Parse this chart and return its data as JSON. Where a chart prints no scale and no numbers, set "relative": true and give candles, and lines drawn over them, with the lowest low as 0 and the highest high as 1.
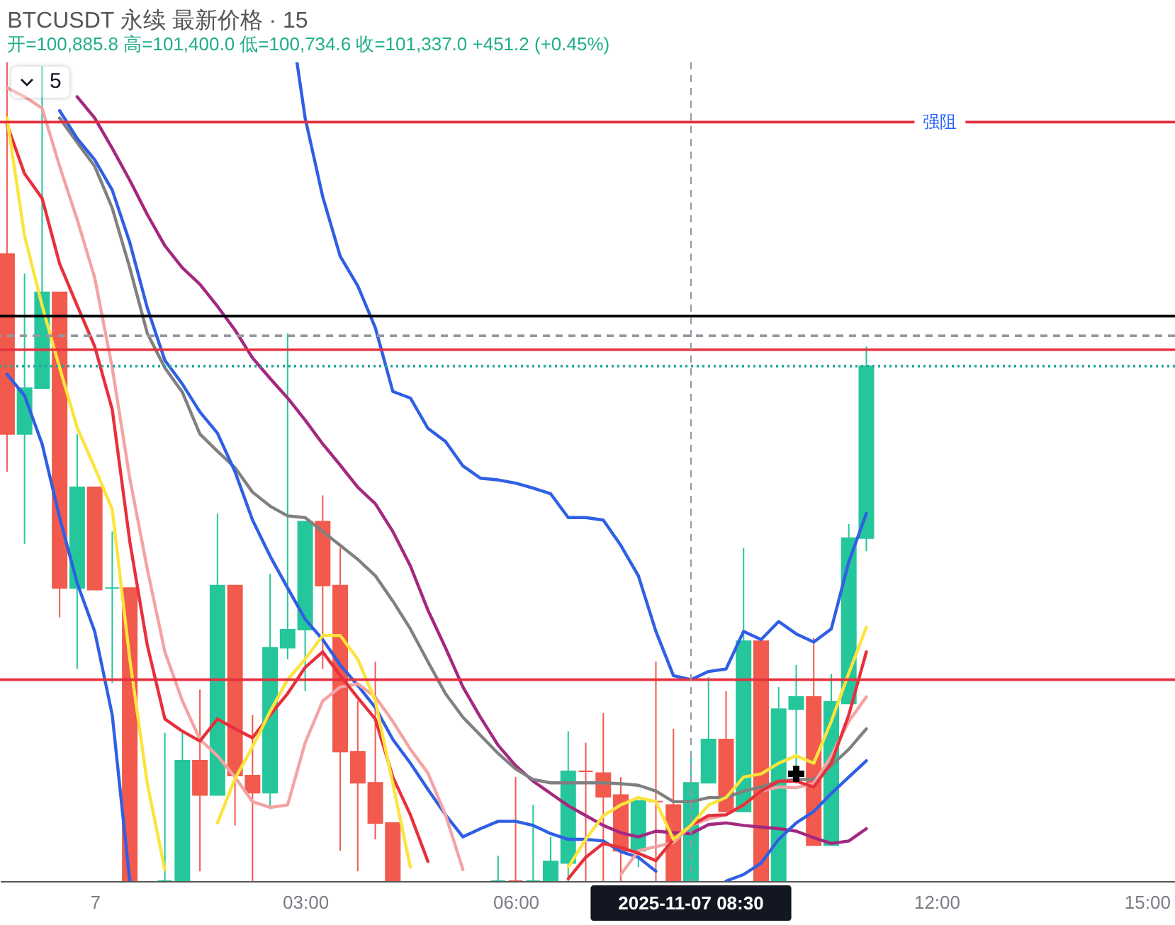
{
  "chart_data": {
    "type": "candlestick",
    "relative": true,
    "title": "BTCUSDT 永续 最新价格 · 15",
    "subtitle": "开=100,885.8 高=101,400.0 低=100,734.6 收=101,337.0 +451.2 (+0.45%)",
    "annotations": [
      "5"
    ],
    "x": [
      "2025-11-06T22:45",
      "2025-11-06T23:00",
      "2025-11-06T23:15",
      "2025-11-06T23:30",
      "2025-11-06T23:45",
      "2025-11-07T00:00",
      "2025-11-07T00:15",
      "2025-11-07T00:30",
      "2025-11-07T00:45",
      "2025-11-07T01:00",
      "2025-11-07T01:15",
      "2025-11-07T01:30",
      "2025-11-07T01:45",
      "2025-11-07T02:00",
      "2025-11-07T02:15",
      "2025-11-07T02:30",
      "2025-11-07T02:45",
      "2025-11-07T03:00",
      "2025-11-07T03:15",
      "2025-11-07T03:30",
      "2025-11-07T03:45",
      "2025-11-07T04:00",
      "2025-11-07T04:15",
      "2025-11-07T04:30",
      "2025-11-07T04:45",
      "2025-11-07T05:00",
      "2025-11-07T05:15",
      "2025-11-07T05:30",
      "2025-11-07T05:45",
      "2025-11-07T06:00",
      "2025-11-07T06:15",
      "2025-11-07T06:30",
      "2025-11-07T06:45",
      "2025-11-07T07:00",
      "2025-11-07T07:15",
      "2025-11-07T07:30",
      "2025-11-07T07:45",
      "2025-11-07T08:00",
      "2025-11-07T08:15",
      "2025-11-07T08:30",
      "2025-11-07T08:45",
      "2025-11-07T09:00",
      "2025-11-07T09:15",
      "2025-11-07T09:30",
      "2025-11-07T09:45",
      "2025-11-07T10:00",
      "2025-11-07T10:15",
      "2025-11-07T10:30",
      "2025-11-07T10:45",
      "2025-11-07T11:00"
    ],
    "xlim": [
      "2025-11-06T22:39",
      "2025-11-07T15:24"
    ],
    "xticks": [
      {
        "value": "2025-11-07T00:00",
        "label": "7"
      },
      {
        "value": "2025-11-07T03:00",
        "label": "03:00"
      },
      {
        "value": "2025-11-07T06:00",
        "label": "06:00"
      },
      {
        "value": "2025-11-07T12:00",
        "label": "12:00"
      },
      {
        "value": "2025-11-07T15:00",
        "label": "15:00"
      }
    ],
    "ohlc": [
      [
        0.766,
        1.0,
        0.5,
        0.546
      ],
      [
        0.546,
        0.742,
        0.412,
        0.602
      ],
      [
        0.602,
        0.995,
        0.602,
        0.719
      ],
      [
        0.719,
        0.719,
        0.322,
        0.358
      ],
      [
        0.358,
        0.546,
        0.259,
        0.481
      ],
      [
        0.481,
        0.481,
        0.356,
        0.356
      ],
      [
        0.358,
        0.427,
        0.242,
        0.358
      ],
      [
        0.358,
        0.358,
        0,
        0
      ],
      null,
      [
        0,
        0.181,
        0,
        0
      ],
      [
        0,
        0.181,
        0,
        0.147
      ],
      [
        0.147,
        0.234,
        0.012,
        0.105
      ],
      [
        0.105,
        0.449,
        0.105,
        0.361
      ],
      [
        0.361,
        0.361,
        0.068,
        0.129
      ],
      [
        0.129,
        0.203,
        0,
        0.108
      ],
      [
        0.108,
        0.375,
        0.088,
        0.285
      ],
      [
        0.285,
        0.669,
        0.271,
        0.307
      ],
      [
        0.307,
        0.439,
        0.232,
        0.439
      ],
      [
        0.439,
        0.471,
        0.259,
        0.361
      ],
      [
        0.361,
        0.407,
        0.037,
        0.158
      ],
      [
        0.158,
        0.22,
        0.012,
        0.12
      ],
      [
        0.12,
        0.268,
        0.051,
        0.071
      ],
      [
        0.071,
        0.071,
        0,
        0
      ],
      null,
      null,
      null,
      null,
      null,
      [
        0,
        0.031,
        0,
        0
      ],
      [
        0,
        0.127,
        0,
        0
      ],
      [
        0,
        0.093,
        0,
        0
      ],
      [
        0,
        0.054,
        0,
        0.024
      ],
      [
        0.022,
        0.183,
        0,
        0.134
      ],
      [
        0.134,
        0.169,
        0,
        0.134
      ],
      [
        0.132,
        0.205,
        0,
        0.103
      ],
      [
        0.105,
        0.127,
        0,
        0.037
      ],
      [
        0.037,
        0.098,
        0.017,
        0.098
      ],
      [
        0.097,
        0.268,
        0,
        0.097
      ],
      [
        0.093,
        0.186,
        0,
        0
      ],
      [
        0,
        0.156,
        0,
        0.12
      ],
      [
        0.12,
        0.249,
        0.12,
        0.173
      ],
      [
        0.173,
        0.232,
        0.085,
        0.085
      ],
      [
        0.085,
        0.407,
        0.085,
        0.293
      ],
      [
        0.293,
        0.293,
        0,
        0
      ],
      [
        0,
        0.237,
        0,
        0.21
      ],
      [
        0.21,
        0.264,
        0.119,
        0.225
      ],
      [
        0.225,
        0.297,
        0.044,
        0.044
      ],
      [
        0.044,
        0.253,
        0.044,
        0.219
      ],
      [
        0.217,
        0.436,
        0.217,
        0.419
      ],
      [
        0.419,
        0.653,
        0.403,
        0.629
      ]
    ],
    "colors": [
      "#f15a4c",
      "#26c69c",
      "#26c69c",
      "#f15a4c",
      "#26c69c",
      "#f15a4c",
      "#26c69c",
      "#f15a4c",
      null,
      "#26c69c",
      "#26c69c",
      "#f15a4c",
      "#26c69c",
      "#f15a4c",
      "#f15a4c",
      "#26c69c",
      "#26c69c",
      "#26c69c",
      "#f15a4c",
      "#f15a4c",
      "#f15a4c",
      "#f15a4c",
      "#f15a4c",
      null,
      null,
      null,
      null,
      null,
      "#26c69c",
      "#f15a4c",
      "#26c69c",
      "#26c69c",
      "#26c69c",
      "#f15a4c",
      "#f15a4c",
      "#f15a4c",
      "#26c69c",
      "#f15a4c",
      "#f15a4c",
      "#26c69c",
      "#26c69c",
      "#f15a4c",
      "#26c69c",
      "#f15a4c",
      "#26c69c",
      "#26c69c",
      "#f15a4c",
      "#26c69c",
      "#26c69c",
      "#26c69c"
    ],
    "series": [
      {
        "type": "line",
        "color": "#2f5fe4",
        "x": [
          "2025-11-07T02:53",
          "2025-11-07T03:00",
          "2025-11-07T03:15",
          "2025-11-07T03:30",
          "2025-11-07T03:45",
          "2025-11-07T04:00",
          "2025-11-07T04:15",
          "2025-11-07T04:30",
          "2025-11-07T04:45",
          "2025-11-07T05:00",
          "2025-11-07T05:15",
          "2025-11-07T05:30",
          "2025-11-07T05:45",
          "2025-11-07T06:00",
          "2025-11-07T06:15",
          "2025-11-07T06:30",
          "2025-11-07T06:45",
          "2025-11-07T07:00",
          "2025-11-07T07:15",
          "2025-11-07T07:30",
          "2025-11-07T07:45",
          "2025-11-07T08:00",
          "2025-11-07T08:15",
          "2025-11-07T08:30",
          "2025-11-07T08:45",
          "2025-11-07T09:00",
          "2025-11-07T09:15",
          "2025-11-07T09:30",
          "2025-11-07T09:45",
          "2025-11-07T10:00",
          "2025-11-07T10:15",
          "2025-11-07T10:30",
          "2025-11-07T10:45",
          "2025-11-07T11:00"
        ],
        "values": [
          1.0,
          0.932,
          0.836,
          0.763,
          0.727,
          0.676,
          0.598,
          0.59,
          0.553,
          0.537,
          0.507,
          0.492,
          0.49,
          0.486,
          0.48,
          0.473,
          0.444,
          0.444,
          0.441,
          0.41,
          0.373,
          0.305,
          0.251,
          0.246,
          0.256,
          0.259,
          0.305,
          0.295,
          0.317,
          0.302,
          0.292,
          0.308,
          0.39,
          0.449
        ]
      },
      {
        "type": "line",
        "color": "#a4287f",
        "values": [
          null,
          null,
          null,
          null,
          0.958,
          0.932,
          0.895,
          0.856,
          0.814,
          0.776,
          0.749,
          0.729,
          0.702,
          0.673,
          0.639,
          0.614,
          0.59,
          0.563,
          0.534,
          0.508,
          0.481,
          0.461,
          0.427,
          0.385,
          0.331,
          0.285,
          0.237,
          0.2,
          0.166,
          0.141,
          0.122,
          0.107,
          0.092,
          0.08,
          0.068,
          0.059,
          0.054,
          0.061,
          0.059,
          0.058,
          0.069,
          0.071,
          0.068,
          0.066,
          0.064,
          0.061,
          0.053,
          0.046,
          0.049,
          0.064
        ]
      },
      {
        "type": "line",
        "color": "#808080",
        "values": [
          null,
          null,
          null,
          0.932,
          0.902,
          0.873,
          0.822,
          0.749,
          0.669,
          0.627,
          0.597,
          0.546,
          0.525,
          0.505,
          0.475,
          0.458,
          0.446,
          0.444,
          0.427,
          0.41,
          0.393,
          0.373,
          0.342,
          0.308,
          0.268,
          0.229,
          0.2,
          0.178,
          0.156,
          0.137,
          0.124,
          0.12,
          0.12,
          0.12,
          0.12,
          0.119,
          0.117,
          0.11,
          0.097,
          0.097,
          0.102,
          0.102,
          0.11,
          0.115,
          0.122,
          0.124,
          0.124,
          0.141,
          0.161,
          0.186
        ]
      },
      {
        "type": "line",
        "color": "#2f5fe4",
        "values": [
          null,
          null,
          null,
          0.941,
          0.907,
          0.881,
          0.844,
          0.78,
          0.7,
          0.636,
          0.607,
          0.573,
          0.547,
          0.5,
          0.441,
          0.397,
          0.358,
          0.32,
          0.295,
          0.264,
          0.239,
          0.212,
          0.173,
          0.144,
          0.112,
          0.081,
          0.054,
          0.064,
          0.073,
          0.073,
          0.068,
          0.058,
          0.051,
          0.051,
          0.049,
          0.036,
          0.029,
          0.012,
          null,
          null,
          null,
          0.0,
          0.008,
          0.022,
          0.051,
          0.071,
          0.085,
          0.107,
          0.127,
          0.147
        ]
      },
      {
        "type": "line",
        "color": "#2f5fe4",
        "values": [
          0.619,
          0.593,
          0.534,
          0.444,
          0.364,
          0.305,
          0.203,
          0.0,
          null,
          null,
          null,
          null,
          null,
          null,
          null,
          null,
          null,
          null,
          null,
          null,
          null,
          null,
          null,
          null,
          null,
          null,
          null,
          null,
          null,
          null,
          null,
          null,
          null,
          null,
          null,
          null,
          null,
          null,
          null,
          null,
          null,
          null,
          null,
          null,
          null,
          null,
          null,
          null,
          null,
          null
        ]
      },
      {
        "type": "line",
        "color": "#f4a3a3",
        "values": [
          0.969,
          0.958,
          0.944,
          0.873,
          0.808,
          0.737,
          0.627,
          0.492,
          0.381,
          0.28,
          0.22,
          0.173,
          0.153,
          0.127,
          0.097,
          0.09,
          0.093,
          0.169,
          0.22,
          0.237,
          0.241,
          0.225,
          0.195,
          0.161,
          0.132,
          0.081,
          0.014,
          null,
          null,
          null,
          null,
          null,
          null,
          null,
          null,
          0.008,
          0.037,
          0.042,
          0.047,
          0.068,
          0.076,
          0.081,
          0.093,
          0.11,
          0.115,
          0.114,
          0.119,
          0.153,
          0.195,
          0.225
        ]
      },
      {
        "type": "line",
        "color": "#e8303c",
        "values": [
          0.924,
          0.864,
          0.834,
          0.754,
          0.703,
          0.653,
          0.576,
          0.415,
          0.288,
          0.198,
          0.183,
          0.171,
          0.198,
          0.186,
          0.175,
          0.203,
          0.229,
          0.261,
          0.28,
          0.251,
          0.224,
          0.198,
          0.127,
          0.081,
          0.024,
          null,
          null,
          null,
          null,
          null,
          null,
          null,
          0.003,
          0.029,
          0.046,
          0.041,
          0.034,
          0.025,
          0.051,
          0.068,
          0.08,
          0.081,
          0.093,
          0.11,
          0.122,
          0.122,
          0.115,
          0.144,
          0.203,
          0.28
        ]
      },
      {
        "type": "line",
        "color": "#fbe43c",
        "values": [
          0.932,
          0.788,
          0.703,
          0.627,
          0.554,
          0.505,
          0.454,
          0.271,
          0.119,
          0.014,
          null,
          null,
          0.071,
          0.125,
          0.164,
          0.207,
          0.246,
          0.271,
          0.3,
          0.3,
          0.271,
          0.22,
          0.119,
          0.017,
          null,
          null,
          null,
          null,
          null,
          null,
          null,
          null,
          0.017,
          0.051,
          0.08,
          0.093,
          0.102,
          0.097,
          0.051,
          0.068,
          0.093,
          0.102,
          0.127,
          0.131,
          0.144,
          0.153,
          0.144,
          0.195,
          0.254,
          0.31
        ]
      },
      {
        "type": "scatter",
        "marker": "cross",
        "color": "#000000",
        "x": [
          "2025-11-07T10:00"
        ],
        "values": [
          0.131
        ]
      }
    ],
    "ref_lines": [
      {
        "axis": "y",
        "value": 0.927,
        "label": "强阻",
        "color": "#e5303e"
      },
      {
        "axis": "y",
        "value": 0.69,
        "color": "#000000"
      },
      {
        "axis": "y",
        "value": 0.666,
        "color": "#9598a1",
        "line_style": "dashed"
      },
      {
        "axis": "y",
        "value": 0.649,
        "color": "#e5303e"
      },
      {
        "axis": "y",
        "value": 0.629,
        "color": "#26a69a",
        "line_style": "dotted"
      },
      {
        "axis": "y",
        "value": 0.246,
        "color": "#e5303e"
      },
      {
        "axis": "x",
        "value": "2025-11-07T08:30",
        "label": "2025-11-07 08:30",
        "color": "#9598a1",
        "line_style": "dashed"
      }
    ]
  }
}
